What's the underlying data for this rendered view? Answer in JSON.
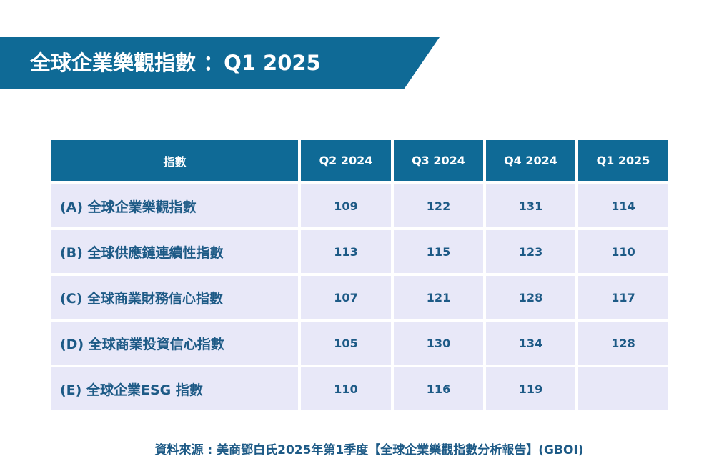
{
  "header": {
    "title": "全球企業樂觀指數 ：Q1 2025"
  },
  "table": {
    "columns": [
      "指數",
      "Q2 2024",
      "Q3 2024",
      "Q4 2024",
      "Q1 2025"
    ],
    "rows": [
      {
        "label": "(A) 全球企業樂觀指數",
        "values": [
          109,
          122,
          131,
          114
        ]
      },
      {
        "label": "(B) 全球供應鏈連續性指數",
        "values": [
          113,
          115,
          123,
          110
        ]
      },
      {
        "label": "(C) 全球商業財務信心指數",
        "values": [
          107,
          121,
          128,
          117
        ]
      },
      {
        "label": "(D) 全球商業投資信心指數",
        "values": [
          105,
          130,
          134,
          128
        ]
      },
      {
        "label": "(E) 全球企業ESG 指數",
        "values": [
          110,
          116,
          119,
          null
        ]
      }
    ]
  },
  "footer": {
    "source": "資料來源 : 美商鄧白氏2025年第1季度【全球企業樂觀指數分析報告】(GBOI)"
  }
}
